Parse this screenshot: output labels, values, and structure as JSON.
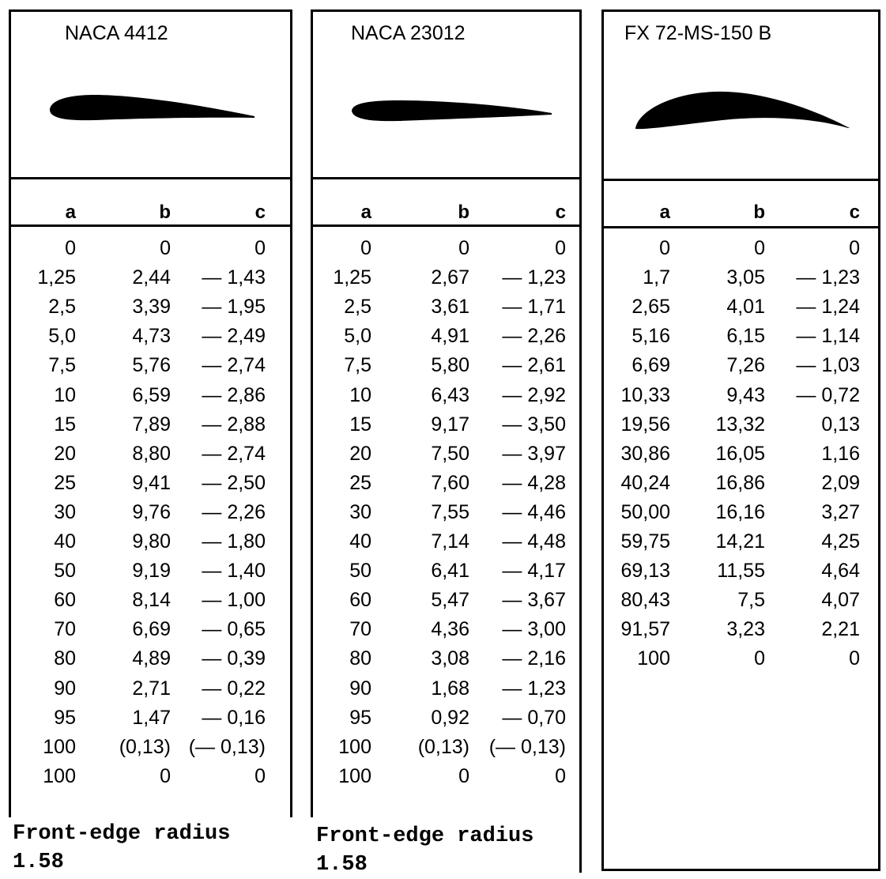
{
  "panels": [
    {
      "title": "NACA 4412",
      "headers": [
        "a",
        "b",
        "c"
      ],
      "rows": [
        [
          "0",
          "0",
          "0"
        ],
        [
          "1,25",
          "2,44",
          "— 1,43"
        ],
        [
          "2,5",
          "3,39",
          "— 1,95"
        ],
        [
          "5,0",
          "4,73",
          "— 2,49"
        ],
        [
          "7,5",
          "5,76",
          "— 2,74"
        ],
        [
          "10",
          "6,59",
          "— 2,86"
        ],
        [
          "15",
          "7,89",
          "— 2,88"
        ],
        [
          "20",
          "8,80",
          "— 2,74"
        ],
        [
          "25",
          "9,41",
          "— 2,50"
        ],
        [
          "30",
          "9,76",
          "— 2,26"
        ],
        [
          "40",
          "9,80",
          "— 1,80"
        ],
        [
          "50",
          "9,19",
          "— 1,40"
        ],
        [
          "60",
          "8,14",
          "— 1,00"
        ],
        [
          "70",
          "6,69",
          "— 0,65"
        ],
        [
          "80",
          "4,89",
          "— 0,39"
        ],
        [
          "90",
          "2,71",
          "— 0,22"
        ],
        [
          "95",
          "1,47",
          "— 0,16"
        ],
        [
          "100",
          "(0,13)",
          "(— 0,13)"
        ],
        [
          "100",
          "0",
          "0"
        ]
      ],
      "note_label": "Front-edge radius",
      "note_value": "1.58"
    },
    {
      "title": "NACA 23012",
      "headers": [
        "a",
        "b",
        "c"
      ],
      "rows": [
        [
          "0",
          "0",
          "0"
        ],
        [
          "1,25",
          "2,67",
          "— 1,23"
        ],
        [
          "2,5",
          "3,61",
          "— 1,71"
        ],
        [
          "5,0",
          "4,91",
          "— 2,26"
        ],
        [
          "7,5",
          "5,80",
          "— 2,61"
        ],
        [
          "10",
          "6,43",
          "— 2,92"
        ],
        [
          "15",
          "9,17",
          "— 3,50"
        ],
        [
          "20",
          "7,50",
          "— 3,97"
        ],
        [
          "25",
          "7,60",
          "— 4,28"
        ],
        [
          "30",
          "7,55",
          "— 4,46"
        ],
        [
          "40",
          "7,14",
          "— 4,48"
        ],
        [
          "50",
          "6,41",
          "— 4,17"
        ],
        [
          "60",
          "5,47",
          "— 3,67"
        ],
        [
          "70",
          "4,36",
          "— 3,00"
        ],
        [
          "80",
          "3,08",
          "— 2,16"
        ],
        [
          "90",
          "1,68",
          "— 1,23"
        ],
        [
          "95",
          "0,92",
          "— 0,70"
        ],
        [
          "100",
          "(0,13)",
          "(— 0,13)"
        ],
        [
          "100",
          "0",
          "0"
        ]
      ],
      "note_label": "Front-edge radius",
      "note_value": "1.58"
    },
    {
      "title": "FX 72-MS-150 B",
      "headers": [
        "a",
        "b",
        "c"
      ],
      "rows": [
        [
          "0",
          "0",
          "0"
        ],
        [
          "1,7",
          "3,05",
          "— 1,23"
        ],
        [
          "2,65",
          "4,01",
          "— 1,24"
        ],
        [
          "5,16",
          "6,15",
          "— 1,14"
        ],
        [
          "6,69",
          "7,26",
          "— 1,03"
        ],
        [
          "10,33",
          "9,43",
          "— 0,72"
        ],
        [
          "19,56",
          "13,32",
          "0,13"
        ],
        [
          "30,86",
          "16,05",
          "1,16"
        ],
        [
          "40,24",
          "16,86",
          "2,09"
        ],
        [
          "50,00",
          "16,16",
          "3,27"
        ],
        [
          "59,75",
          "14,21",
          "4,25"
        ],
        [
          "69,13",
          "11,55",
          "4,64"
        ],
        [
          "80,43",
          "7,5",
          "4,07"
        ],
        [
          "91,57",
          "3,23",
          "2,21"
        ],
        [
          "100",
          "0",
          "0"
        ]
      ]
    }
  ]
}
